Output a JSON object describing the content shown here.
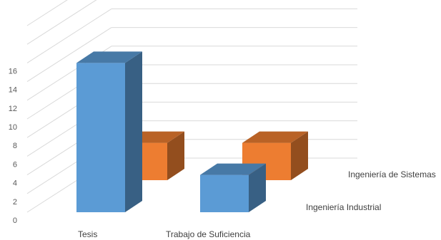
{
  "chart_data": {
    "type": "bar",
    "title": "",
    "xlabel": "",
    "ylabel": "",
    "ylim": [
      0,
      16
    ],
    "yticks": [
      0,
      2,
      4,
      6,
      8,
      10,
      12,
      14,
      16
    ],
    "grid": true,
    "categories": [
      "Tesis",
      "Trabajo de Suficiencia"
    ],
    "series": [
      {
        "name": "Ingeniería Industrial",
        "values": [
          16,
          4
        ],
        "color": "#5B9BD5"
      },
      {
        "name": "Ingeniería de Sistemas",
        "values": [
          4,
          4
        ],
        "color": "#ED7D31"
      }
    ]
  }
}
